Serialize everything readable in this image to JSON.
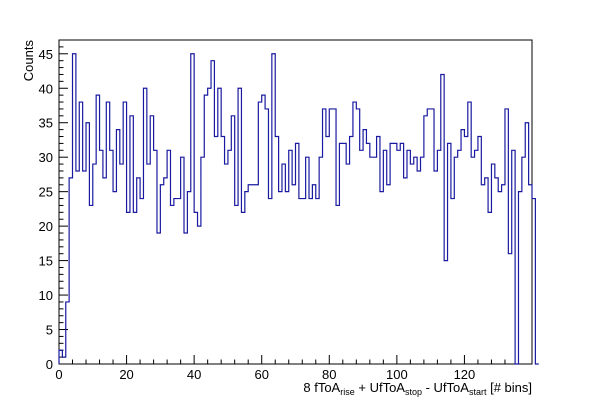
{
  "chart_data": {
    "type": "histogram",
    "title": "",
    "ylabel": "Counts",
    "xlabel": {
      "parts": [
        {
          "text": "8 fToA"
        },
        {
          "text": "rise",
          "sub": true
        },
        {
          "text": " + UfToA"
        },
        {
          "text": "stop",
          "sub": true
        },
        {
          "text": " - UfToA"
        },
        {
          "text": "start",
          "sub": true
        },
        {
          "text": " [# bins]"
        }
      ]
    },
    "xlim": [
      0,
      140
    ],
    "ylim": [
      0,
      47
    ],
    "x_major_ticks": [
      0,
      20,
      40,
      60,
      80,
      100,
      120
    ],
    "y_major_ticks": [
      0,
      5,
      10,
      15,
      20,
      25,
      30,
      35,
      40,
      45
    ],
    "bin_width": 1,
    "bin_start": 0,
    "line_color": "#1a1aa0",
    "grid": false,
    "values": [
      2,
      1,
      9,
      27,
      45,
      28,
      38,
      28,
      35,
      23,
      29,
      39,
      31,
      27,
      38,
      31,
      25,
      34,
      29,
      38,
      22,
      36,
      22,
      27,
      24,
      40,
      29,
      36,
      31,
      19,
      26,
      27,
      31,
      23,
      24,
      24,
      30,
      19,
      25,
      45,
      22,
      20,
      30,
      39,
      40,
      44,
      33,
      40,
      33,
      29,
      31,
      36,
      23,
      40,
      22,
      25,
      26,
      26,
      26,
      38,
      39,
      37,
      24,
      45,
      33,
      25,
      29,
      25,
      31,
      26,
      32,
      24,
      24,
      30,
      24,
      26,
      24,
      30,
      37,
      33,
      37,
      37,
      23,
      32,
      32,
      29,
      33,
      38,
      37,
      31,
      34,
      32,
      30,
      30,
      33,
      25,
      31,
      26,
      32,
      32,
      31,
      32,
      27,
      31,
      29,
      30,
      28,
      30,
      36,
      37,
      37,
      28,
      31,
      42,
      15,
      32,
      24,
      30,
      31,
      34,
      33,
      38,
      30,
      31,
      33,
      26,
      27,
      22,
      29,
      27,
      25,
      26,
      37,
      16,
      31,
      0,
      25,
      30,
      35,
      26,
      24,
      0
    ]
  }
}
